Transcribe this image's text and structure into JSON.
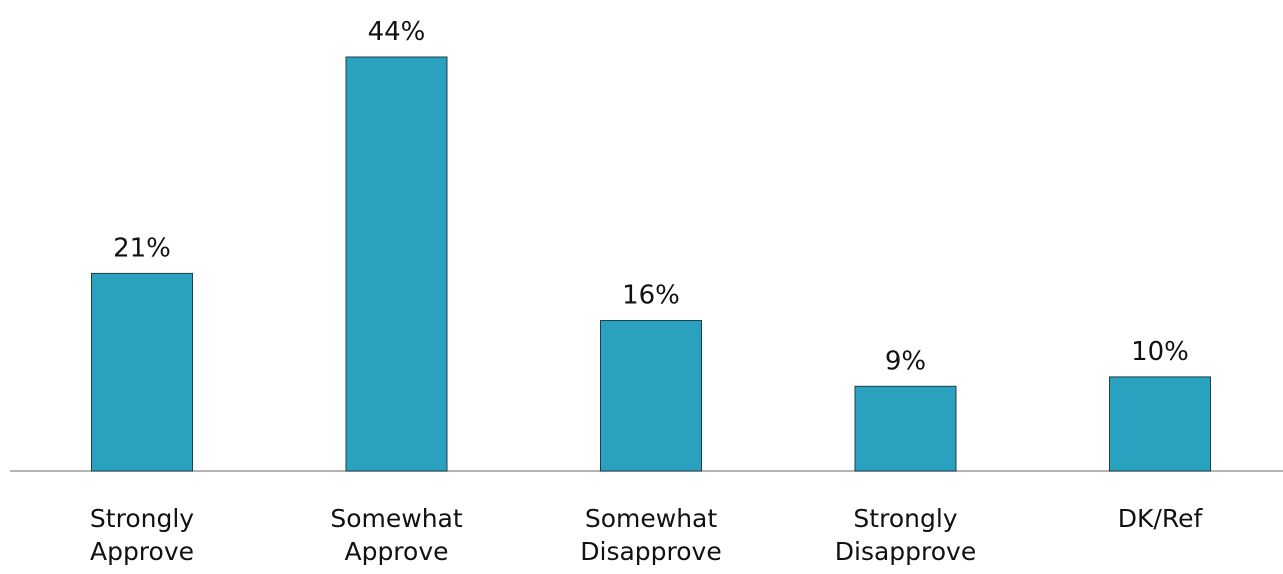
{
  "chart_data": {
    "type": "bar",
    "categories": [
      [
        "Strongly",
        "Approve"
      ],
      [
        "Somewhat",
        "Approve"
      ],
      [
        "Somewhat",
        "Disapprove"
      ],
      [
        "Strongly",
        "Disapprove"
      ],
      [
        "DK/Ref"
      ]
    ],
    "values": [
      21,
      44,
      16,
      9,
      10
    ],
    "value_labels": [
      "21%",
      "44%",
      "16%",
      "9%",
      "10%"
    ],
    "title": "",
    "xlabel": "",
    "ylabel": "",
    "ylim": [
      0,
      44
    ],
    "grid": false,
    "legend": "none",
    "bar_color": "#2aa2bf"
  }
}
